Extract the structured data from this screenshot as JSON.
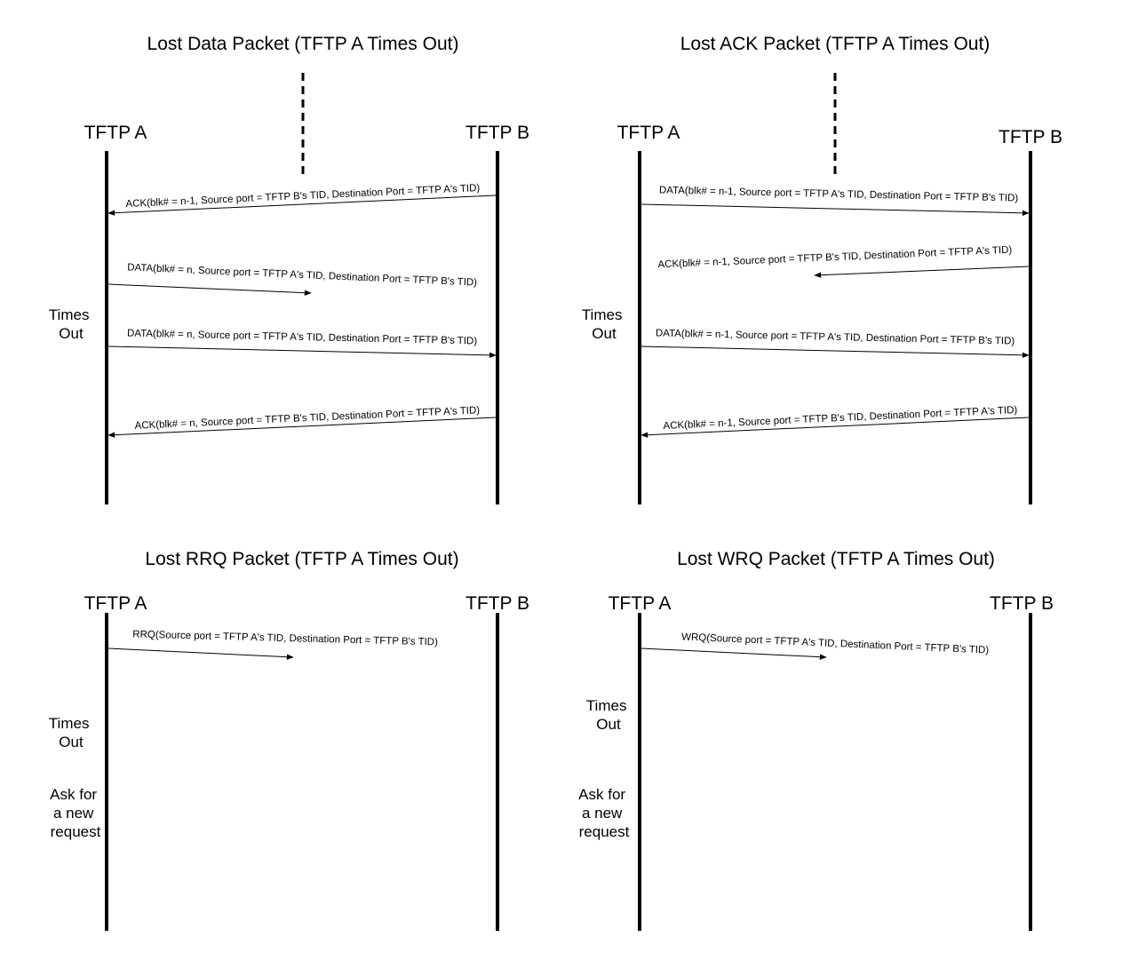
{
  "panels": {
    "data": {
      "title": "Lost Data Packet (TFTP A Times Out)",
      "host_a": "TFTP A",
      "host_b": "TFTP B",
      "times": [
        "Times",
        "Out"
      ],
      "m1": "ACK(blk# = n-1, Source port = TFTP B's TID, Destination Port = TFTP A's TID)",
      "m2": "DATA(blk# = n, Source port = TFTP A's TID, Destination Port = TFTP B's TID)",
      "m3": "DATA(blk# = n, Source port = TFTP A's TID, Destination Port = TFTP B's TID)",
      "m4": "ACK(blk# = n, Source port = TFTP B's TID, Destination Port = TFTP A's TID)"
    },
    "ack": {
      "title": "Lost ACK Packet (TFTP A Times Out)",
      "host_a": "TFTP A",
      "host_b": "TFTP B",
      "times": [
        "Times",
        "Out"
      ],
      "m1": "DATA(blk# = n-1, Source port = TFTP A's TID, Destination Port = TFTP B's TID)",
      "m2": "ACK(blk# = n-1, Source port = TFTP B's TID, Destination Port = TFTP A's TID)",
      "m3": "DATA(blk# = n-1, Source port = TFTP A's TID, Destination Port = TFTP B's TID)",
      "m4": "ACK(blk# = n-1, Source port = TFTP B's TID, Destination Port = TFTP A's TID)"
    },
    "rrq": {
      "title": "Lost RRQ Packet (TFTP A Times Out)",
      "host_a": "TFTP A",
      "host_b": "TFTP B",
      "times": [
        "Times",
        "Out"
      ],
      "ask": [
        "Ask for",
        "a new",
        "request"
      ],
      "m1": "RRQ(Source port = TFTP A's TID, Destination Port = TFTP B's TID)"
    },
    "wrq": {
      "title": "Lost WRQ Packet (TFTP A Times Out)",
      "host_a": "TFTP A",
      "host_b": "TFTP B",
      "times": [
        "Times",
        "Out"
      ],
      "ask": [
        "Ask for",
        "a new",
        "request"
      ],
      "m1": "WRQ(Source port = TFTP A's TID, Destination Port = TFTP B's TID)"
    }
  }
}
